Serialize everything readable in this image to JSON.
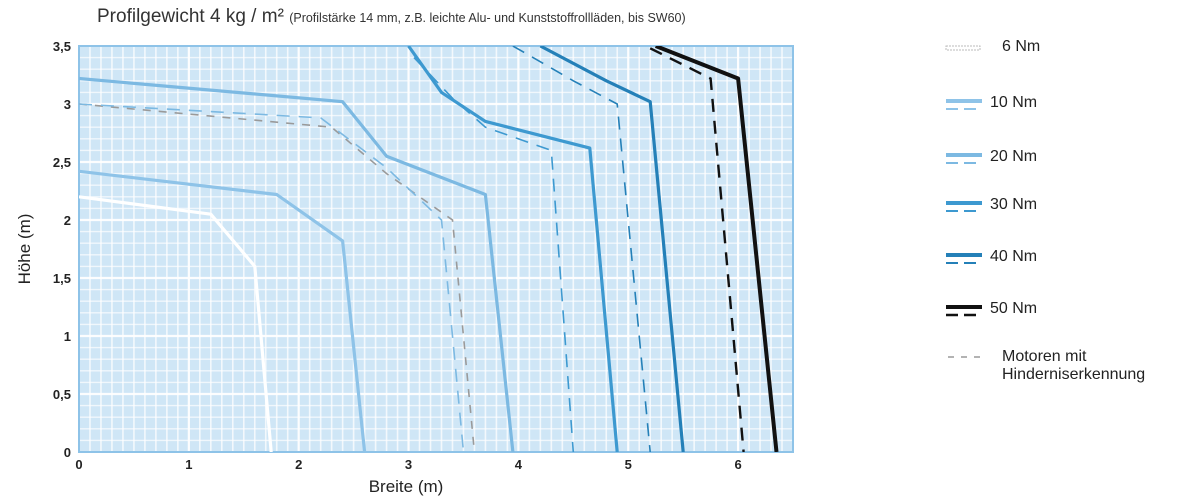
{
  "title": {
    "main": "Profilgewicht 4 kg / m²",
    "note": "(Profilstärke 14 mm, z.B. leichte Alu- und Kunststoffrollläden, bis SW60)"
  },
  "chart_data": {
    "type": "line",
    "title": "Profilgewicht 4 kg / m²",
    "subtitle": "(Profilstärke 14 mm, z.B. leichte Alu- und Kunststoffrollläden, bis SW60)",
    "xlabel": "Breite (m)",
    "ylabel": "Höhe (m)",
    "xlim": [
      0,
      6.5
    ],
    "ylim": [
      0,
      3.5
    ],
    "xticks": [
      0,
      1,
      2,
      3,
      4,
      5,
      6
    ],
    "yticks": [
      0,
      0.5,
      1,
      1.5,
      2,
      2.5,
      3,
      3.5
    ],
    "ytick_labels": [
      "0",
      "0,5",
      "1",
      "1,5",
      "2",
      "2,5",
      "3",
      "3,5"
    ],
    "grid": true,
    "legend_position": "right",
    "series": [
      {
        "name": "6 Nm",
        "color": "#ffffff",
        "solid": [
          [
            0,
            2.2
          ],
          [
            1.2,
            2.05
          ],
          [
            1.6,
            1.6
          ],
          [
            1.75,
            0
          ]
        ],
        "dashed": null
      },
      {
        "name": "10 Nm",
        "color": "#8ec3e8",
        "solid": [
          [
            0,
            2.42
          ],
          [
            1.8,
            2.22
          ],
          [
            2.4,
            1.82
          ],
          [
            2.6,
            0
          ]
        ],
        "dashed": null
      },
      {
        "name": "20 Nm",
        "color": "#7cb9e2",
        "solid": [
          [
            0,
            3.22
          ],
          [
            2.4,
            3.02
          ],
          [
            2.8,
            2.55
          ],
          [
            3.7,
            2.22
          ],
          [
            3.95,
            0
          ]
        ],
        "dashed": [
          [
            0,
            3.0
          ],
          [
            2.2,
            2.88
          ],
          [
            2.8,
            2.45
          ],
          [
            3.3,
            2.0
          ],
          [
            3.5,
            0
          ]
        ]
      },
      {
        "name": "30 Nm",
        "color": "#3d99d0",
        "solid": [
          [
            3.0,
            3.5
          ],
          [
            3.3,
            3.1
          ],
          [
            3.7,
            2.85
          ],
          [
            4.65,
            2.62
          ],
          [
            4.9,
            0
          ]
        ],
        "dashed": [
          [
            3.05,
            3.4
          ],
          [
            3.4,
            3.05
          ],
          [
            3.7,
            2.8
          ],
          [
            4.3,
            2.6
          ],
          [
            4.5,
            0
          ]
        ]
      },
      {
        "name": "40 Nm",
        "color": "#2480b8",
        "solid": [
          [
            4.2,
            3.5
          ],
          [
            4.8,
            3.2
          ],
          [
            5.2,
            3.02
          ],
          [
            5.5,
            0
          ]
        ],
        "dashed": [
          [
            3.95,
            3.5
          ],
          [
            4.5,
            3.2
          ],
          [
            4.9,
            3.0
          ],
          [
            5.2,
            0
          ]
        ]
      },
      {
        "name": "50 Nm",
        "color": "#111111",
        "solid": [
          [
            5.25,
            3.5
          ],
          [
            6.0,
            3.22
          ],
          [
            6.35,
            0
          ]
        ],
        "dashed": [
          [
            5.2,
            3.48
          ],
          [
            5.75,
            3.22
          ],
          [
            6.05,
            0
          ]
        ]
      }
    ],
    "reference_line": {
      "name": "Motoren mit Hinderniserkennung",
      "color": "#9a9a9a",
      "points": [
        [
          0,
          3.0
        ],
        [
          2.3,
          2.8
        ],
        [
          2.8,
          2.4
        ],
        [
          3.4,
          2.0
        ],
        [
          3.6,
          0
        ]
      ]
    }
  },
  "legend": {
    "items": [
      {
        "id": "6nm",
        "label": "6 Nm"
      },
      {
        "id": "10nm",
        "label": "10 Nm"
      },
      {
        "id": "20nm",
        "label": "20 Nm"
      },
      {
        "id": "30nm",
        "label": "30 Nm"
      },
      {
        "id": "40nm",
        "label": "40 Nm"
      },
      {
        "id": "50nm",
        "label": "50 Nm"
      },
      {
        "id": "obstacle",
        "label": "Motoren mit\nHinderniserkennung"
      }
    ]
  }
}
